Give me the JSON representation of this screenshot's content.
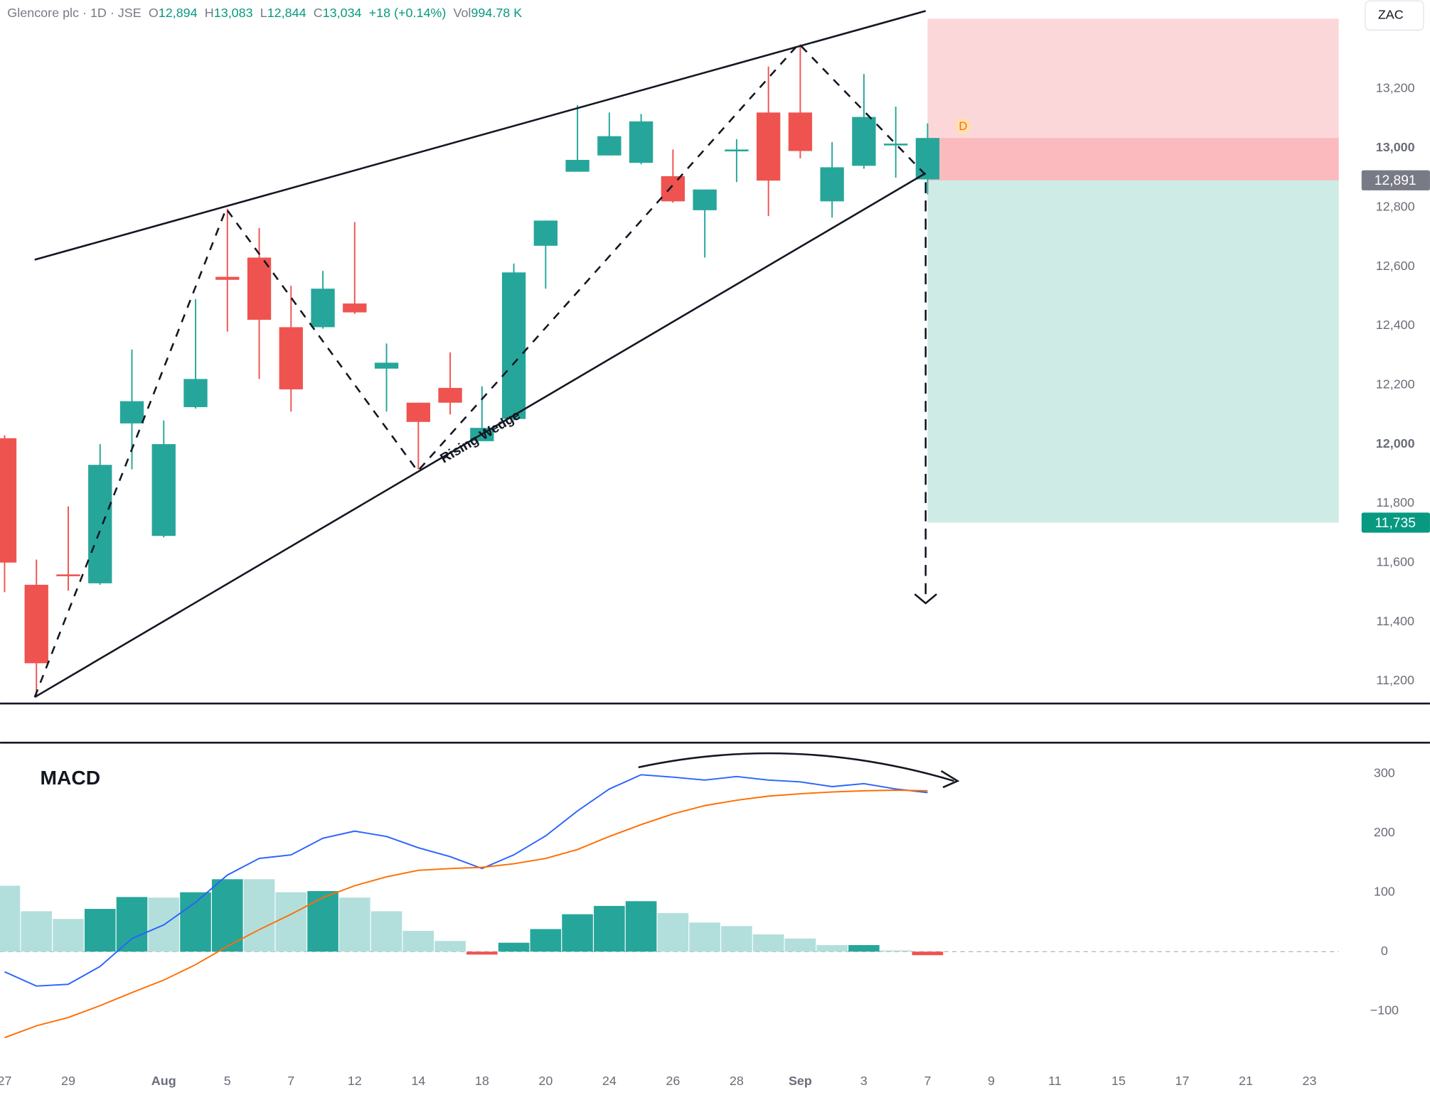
{
  "header": {
    "symbol": "Glencore plc · 1D · JSE",
    "ohlc": [
      [
        "O",
        "12,894"
      ],
      [
        "H",
        "13,083"
      ],
      [
        "L",
        "12,844"
      ],
      [
        "C",
        "13,034"
      ]
    ],
    "change": "+18 (+0.14%)",
    "volume_label": "Vol",
    "volume": "994.78 K"
  },
  "currency": "ZAC",
  "chart_data": [
    {
      "type": "candlestick",
      "categories": [
        "27",
        null,
        "29",
        null,
        null,
        "Aug",
        null,
        "5",
        null,
        "7",
        null,
        "12",
        null,
        "14",
        null,
        "18",
        null,
        "20",
        null,
        "24",
        null,
        "26",
        null,
        "28",
        null,
        "Sep",
        null,
        "3",
        null,
        "7",
        null,
        "9",
        null,
        "11",
        null,
        "15",
        null,
        "17",
        null,
        "21",
        null,
        "23"
      ],
      "open": [
        12020,
        11525,
        11560,
        11530,
        12070,
        11690,
        12125,
        12565,
        12630,
        12395,
        12395,
        12475,
        12255,
        12140,
        12190,
        12010,
        12085,
        12670,
        12920,
        12975,
        12950,
        12905,
        12790,
        12990,
        13120,
        13120,
        12820,
        12940,
        13010,
        12894,
        null,
        null,
        null,
        null,
        null,
        null,
        null,
        null,
        null,
        null,
        null,
        null
      ],
      "high": [
        12030,
        11610,
        11790,
        12000,
        12320,
        12080,
        12490,
        12795,
        12730,
        12535,
        12585,
        12750,
        12340,
        12140,
        12310,
        12195,
        12610,
        12755,
        13145,
        13120,
        13115,
        12995,
        12860,
        13030,
        13275,
        13350,
        13020,
        13250,
        13140,
        13083,
        null,
        null,
        null,
        null,
        null,
        null,
        null,
        null,
        null,
        null,
        null,
        null
      ],
      "low": [
        11500,
        11145,
        11505,
        11525,
        11915,
        11685,
        12120,
        12380,
        12220,
        12110,
        12390,
        12440,
        12110,
        11915,
        12100,
        12010,
        12080,
        12525,
        12920,
        12975,
        12945,
        12815,
        12630,
        12885,
        12770,
        12965,
        12765,
        12930,
        12900,
        12844,
        null,
        null,
        null,
        null,
        null,
        null,
        null,
        null,
        null,
        null,
        null,
        null
      ],
      "close": [
        11600,
        11260,
        11555,
        11930,
        12145,
        12000,
        12220,
        12555,
        12420,
        12185,
        12525,
        12445,
        12275,
        12075,
        12140,
        12055,
        12580,
        12755,
        12960,
        13040,
        13090,
        12820,
        12860,
        12995,
        12890,
        12990,
        12935,
        13105,
        13015,
        13034,
        null,
        null,
        null,
        null,
        null,
        null,
        null,
        null,
        null,
        null,
        null,
        null
      ],
      "up_color": "#26a69a",
      "down_color": "#ef5350",
      "ylim": [
        11124,
        13500
      ],
      "yticks": [
        {
          "value": 11200,
          "label": "11,200"
        },
        {
          "value": 11400,
          "label": "11,400"
        },
        {
          "value": 11600,
          "label": "11,600"
        },
        {
          "value": 11800,
          "label": "11,800"
        },
        {
          "value": 12000,
          "label": "12,000"
        },
        {
          "value": 12200,
          "label": "12,200"
        },
        {
          "value": 12400,
          "label": "12,400"
        },
        {
          "value": 12600,
          "label": "12,600"
        },
        {
          "value": 12800,
          "label": "12,800"
        },
        {
          "value": 13000,
          "label": "13,000"
        },
        {
          "value": 13200,
          "label": "13,200"
        }
      ],
      "position": {
        "stop": 13437,
        "entry": {
          "value": 12891,
          "label": "12,891"
        },
        "target": {
          "value": 11735,
          "label": "11,735"
        }
      },
      "annotation": "Rising Wedge",
      "marker": "D"
    },
    {
      "type": "macd",
      "title": "MACD",
      "histogram": [
        111,
        68,
        55,
        72,
        92,
        91,
        100,
        122,
        122,
        100,
        102,
        91,
        68,
        35,
        18,
        -5,
        15,
        38,
        63,
        77,
        85,
        65,
        49,
        43,
        29,
        22,
        11,
        11,
        2,
        -6
      ],
      "histogram_colors": [
        "#b2dfdb",
        "#b2dfdb",
        "#b2dfdb",
        "#26a69a",
        "#26a69a",
        "#b2dfdb",
        "#26a69a",
        "#26a69a",
        "#b2dfdb",
        "#b2dfdb",
        "#26a69a",
        "#b2dfdb",
        "#b2dfdb",
        "#b2dfdb",
        "#b2dfdb",
        "#ef5350",
        "#26a69a",
        "#26a69a",
        "#26a69a",
        "#26a69a",
        "#26a69a",
        "#b2dfdb",
        "#b2dfdb",
        "#b2dfdb",
        "#b2dfdb",
        "#b2dfdb",
        "#b2dfdb",
        "#26a69a",
        "#b2dfdb",
        "#ef5350"
      ],
      "series": [
        {
          "color": "#2962ff",
          "values": [
            -34,
            -58,
            -55,
            -25,
            22,
            45,
            83,
            129,
            157,
            163,
            191,
            203,
            194,
            175,
            160,
            140,
            163,
            195,
            237,
            274,
            298,
            294,
            289,
            295,
            289,
            286,
            278,
            283,
            274,
            268
          ]
        },
        {
          "color": "#ff6d00",
          "values": [
            -145,
            -125,
            -111,
            -91,
            -69,
            -48,
            -22,
            9,
            37,
            63,
            91,
            111,
            126,
            137,
            140,
            142,
            148,
            157,
            172,
            194,
            214,
            232,
            246,
            255,
            262,
            266,
            269,
            271,
            272,
            271
          ]
        }
      ],
      "ylim": [
        -190,
        352
      ],
      "yticks": [
        {
          "value": -100,
          "label": "−100"
        },
        0,
        100,
        200,
        300
      ]
    }
  ]
}
